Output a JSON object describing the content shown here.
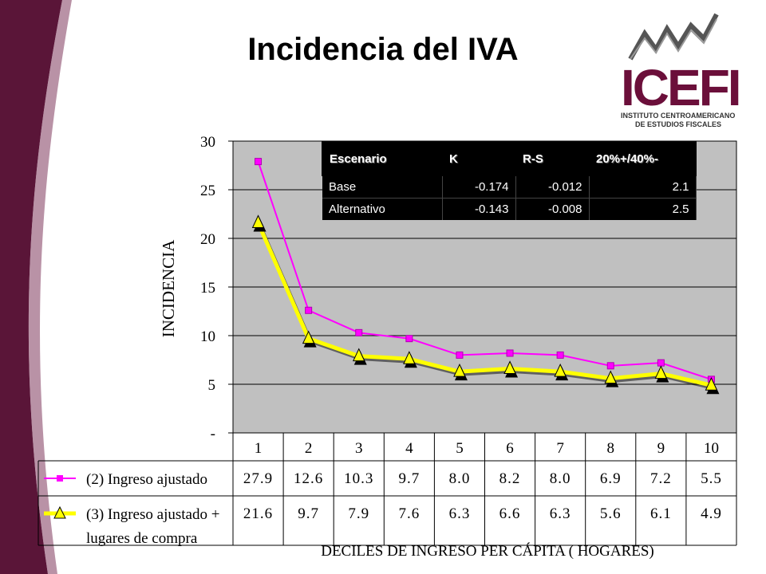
{
  "slide_title": "Incidencia del  IVA",
  "logo": {
    "name": "ICEFI",
    "subtitle_line1": "INSTITUTO CENTROAMERICANO",
    "subtitle_line2": "DE ESTUDIOS FISCALES",
    "color": "#6b0f3a"
  },
  "scenario_table": {
    "headers": [
      "Escenario",
      "K",
      "R-S",
      "20%+/40%-"
    ],
    "rows": [
      [
        "Base",
        "-0.174",
        "-0.012",
        "2.1"
      ],
      [
        "Alternativo",
        "-0.143",
        "-0.008",
        "2.5"
      ]
    ]
  },
  "chart_data": {
    "type": "line",
    "categories": [
      "1",
      "2",
      "3",
      "4",
      "5",
      "6",
      "7",
      "8",
      "9",
      "10"
    ],
    "series": [
      {
        "name": "(2) Ingreso ajustado",
        "values": [
          27.9,
          12.6,
          10.3,
          9.7,
          8.0,
          8.2,
          8.0,
          6.9,
          7.2,
          5.5
        ],
        "color": "#ff00ff",
        "marker": "square"
      },
      {
        "name": "(3) Ingreso ajustado + lugares de compra",
        "values": [
          21.6,
          9.7,
          7.9,
          7.6,
          6.3,
          6.6,
          6.3,
          5.6,
          6.1,
          4.9
        ],
        "color": "#ffff00",
        "marker": "triangle"
      }
    ],
    "ylabel": "INCIDENCIA",
    "xlabel": "DECILES DE INGRESO PER CÁPITA ( HOGARES)",
    "ylim": [
      0,
      30
    ],
    "yticks": [
      "-",
      "5",
      "10",
      "15",
      "20",
      "25",
      "30"
    ],
    "grid": true,
    "plot_background": "#c0c0c0",
    "data_table": [
      [
        "27.9",
        "12.6",
        "10.3",
        "9.7",
        "8.0",
        "8.2",
        "8.0",
        "6.9",
        "7.2",
        "5.5"
      ],
      [
        "21.6",
        "9.7",
        "7.9",
        "7.6",
        "6.3",
        "6.6",
        "6.3",
        "5.6",
        "6.1",
        "4.9"
      ]
    ],
    "legend_labels": [
      "(2) Ingreso ajustado",
      "(3) Ingreso ajustado +",
      "lugares de compra"
    ]
  }
}
